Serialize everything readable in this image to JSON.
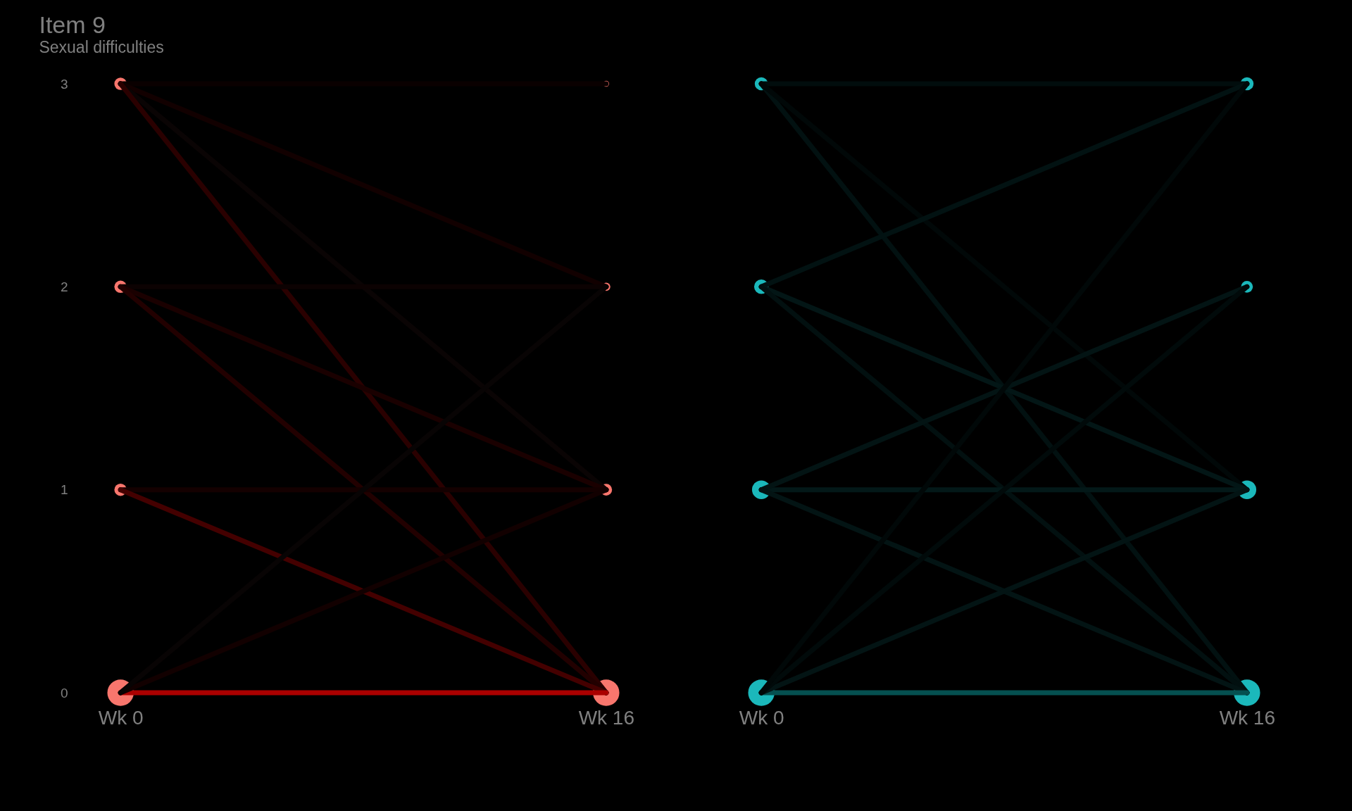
{
  "chart_data": [
    {
      "type": "line",
      "title": "Item 9",
      "subtitle": "Sexual difficulties",
      "categories": [
        "Wk 0",
        "Wk 16"
      ],
      "ylim": [
        0,
        3
      ],
      "yticks": [
        0,
        1,
        2,
        3
      ],
      "grid": false,
      "legend": false,
      "line_style": "solid",
      "series": [
        {
          "color": "#0a0000",
          "values": [
            3,
            3
          ]
        },
        {
          "color": "#120000",
          "values": [
            3,
            2
          ]
        },
        {
          "color": "#0a0404",
          "values": [
            3,
            1
          ]
        },
        {
          "color": "#2a0000",
          "values": [
            3,
            0
          ]
        },
        {
          "color": "#0c0202",
          "values": [
            2,
            2
          ]
        },
        {
          "color": "#1a0000",
          "values": [
            2,
            1
          ]
        },
        {
          "color": "#220000",
          "values": [
            2,
            0
          ]
        },
        {
          "color": "#140000",
          "values": [
            1,
            1
          ]
        },
        {
          "color": "#440000",
          "values": [
            1,
            0
          ]
        },
        {
          "color": "#aa0000",
          "values": [
            0,
            0
          ]
        },
        {
          "color": "#120000",
          "values": [
            0,
            1
          ]
        },
        {
          "color": "#080404",
          "values": [
            0,
            2
          ]
        },
        {
          "type": "bubble",
          "color": "#f8766d",
          "x": [
            "Wk 0",
            "Wk 0",
            "Wk 0",
            "Wk 0",
            "Wk 16",
            "Wk 16",
            "Wk 16",
            "Wk 16"
          ],
          "values": [
            0,
            1,
            2,
            3,
            0,
            1,
            2,
            3
          ],
          "sizes": [
            1,
            0.22,
            0.22,
            0.22,
            1,
            0.2,
            0.1,
            0.05
          ]
        }
      ]
    },
    {
      "type": "line",
      "categories": [
        "Wk 0",
        "Wk 16"
      ],
      "ylim": [
        0,
        3
      ],
      "yticks": [
        0,
        1,
        2,
        3
      ],
      "tick_labels": "x",
      "grid": false,
      "legend": false,
      "line_style": "solid",
      "series": [
        {
          "color": "#010d0d",
          "values": [
            3,
            3
          ]
        },
        {
          "color": "#021111",
          "values": [
            3,
            0
          ]
        },
        {
          "color": "#010808",
          "values": [
            3,
            1
          ]
        },
        {
          "color": "#021212",
          "values": [
            2,
            3
          ]
        },
        {
          "color": "#031616",
          "values": [
            2,
            1
          ]
        },
        {
          "color": "#021010",
          "values": [
            2,
            0
          ]
        },
        {
          "color": "#031818",
          "values": [
            1,
            1
          ]
        },
        {
          "color": "#031414",
          "values": [
            1,
            2
          ]
        },
        {
          "color": "#031414",
          "values": [
            1,
            0
          ]
        },
        {
          "color": "#055050",
          "values": [
            0,
            0
          ]
        },
        {
          "color": "#031414",
          "values": [
            0,
            1
          ]
        },
        {
          "color": "#010a0a",
          "values": [
            0,
            2
          ]
        },
        {
          "color": "#010808",
          "values": [
            0,
            3
          ]
        },
        {
          "type": "bubble",
          "color": "#1bb8bb",
          "x": [
            "Wk 0",
            "Wk 0",
            "Wk 0",
            "Wk 0",
            "Wk 16",
            "Wk 16",
            "Wk 16",
            "Wk 16"
          ],
          "values": [
            0,
            1,
            2,
            3,
            0,
            1,
            2,
            3
          ],
          "sizes": [
            1,
            0.5,
            0.3,
            0.25,
            1,
            0.5,
            0.2,
            0.25
          ]
        }
      ]
    }
  ]
}
